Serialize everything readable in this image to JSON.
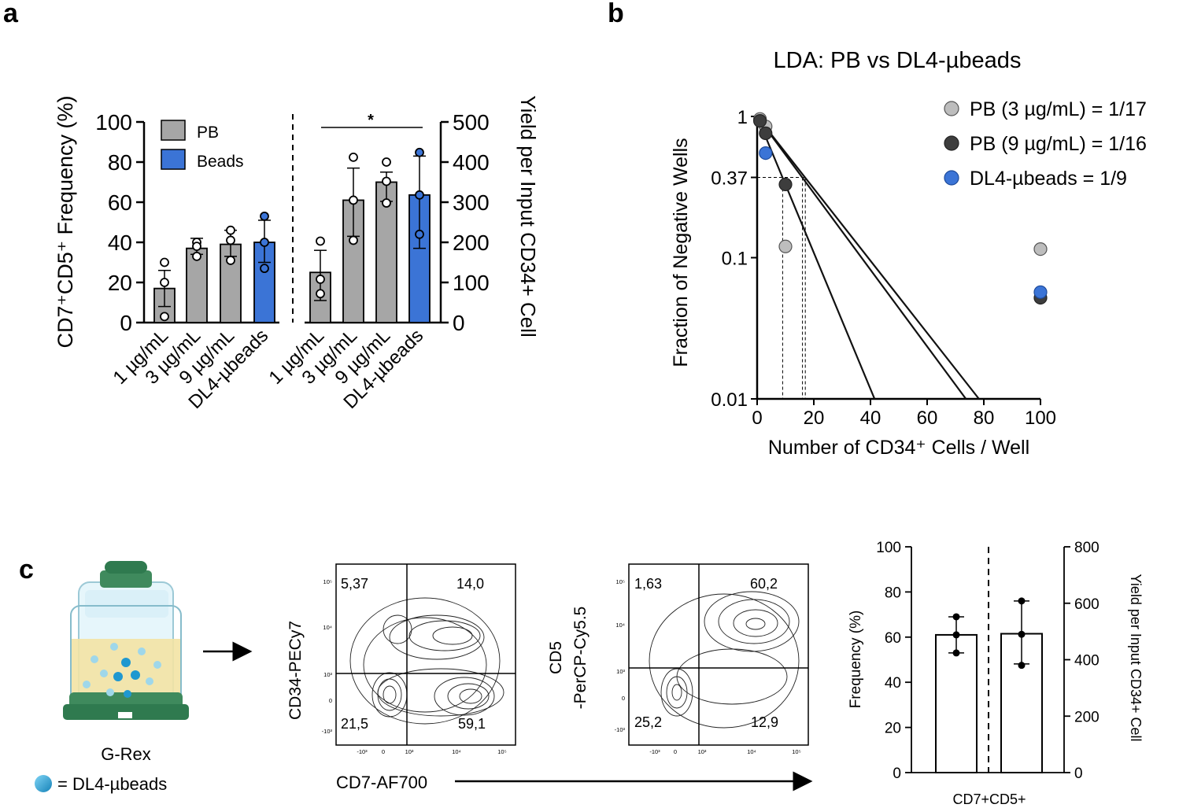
{
  "panels": {
    "a": {
      "label": "a",
      "legend": [
        {
          "name": "PB",
          "color": "#a6a6a6"
        },
        {
          "name": "Beads",
          "color": "#3b74d6"
        }
      ],
      "significance": "*"
    },
    "b": {
      "label": "b",
      "title": "LDA: PB vs DL4-µbeads",
      "legend": [
        {
          "name": "PB (3 µg/mL) = 1/17",
          "color": "#bdbdbd"
        },
        {
          "name": "PB (9 µg/mL) = 1/16",
          "color": "#3d3d3d"
        },
        {
          "name": "DL4-µbeads = 1/9",
          "color": "#3b74d6"
        }
      ],
      "ref_tick": "0.37"
    },
    "c": {
      "label": "c",
      "grex_label": "G-Rex",
      "bead_legend": "= DL4-µbeads",
      "flow1": {
        "ylabel": "CD34-PECy7",
        "q_ul": "5,37",
        "q_ur": "14,0",
        "q_ll": "21,5",
        "q_lr": "59,1"
      },
      "flow2": {
        "ylabel1": "CD5",
        "ylabel2": "-PerCP-Cy5.5",
        "q_ul": "1,63",
        "q_ur": "60,2",
        "q_ll": "25,2",
        "q_lr": "12,9"
      },
      "flow_xlabel": "CD7-AF700",
      "flow_ticks": {
        "t5": "10⁵",
        "t4": "10⁴",
        "t3": "10³",
        "t0": "0",
        "tm3": "-10³"
      }
    }
  },
  "chart_data": [
    {
      "type": "bar",
      "id": "a-left",
      "categories": [
        "1 µg/mL",
        "3 µg/mL",
        "9 µg/mL",
        "DL4-µbeads"
      ],
      "values": [
        17,
        37,
        39,
        40
      ],
      "errors": [
        [
          8,
          26
        ],
        [
          34,
          42
        ],
        [
          33,
          46
        ],
        [
          30,
          51
        ]
      ],
      "points": [
        [
          30,
          20,
          3
        ],
        [
          40,
          38,
          33
        ],
        [
          46,
          41,
          31
        ],
        [
          53,
          40,
          27
        ]
      ],
      "ylabel": "CD7⁺CD5⁺ Frequency (%)",
      "ylim": [
        0,
        100
      ],
      "yticks": [
        "0",
        "20",
        "40",
        "60",
        "80",
        "100"
      ]
    },
    {
      "type": "bar",
      "id": "a-right",
      "categories": [
        "1 µg/mL",
        "3 µg/mL",
        "9 µg/mL",
        "DL4-µbeads"
      ],
      "values": [
        125,
        305,
        350,
        318
      ],
      "errors": [
        [
          55,
          180
        ],
        [
          215,
          385
        ],
        [
          302,
          375
        ],
        [
          185,
          415
        ]
      ],
      "points": [
        [
          203,
          72,
          108
        ],
        [
          412,
          305,
          205
        ],
        [
          400,
          352,
          298
        ],
        [
          424,
          318,
          220
        ]
      ],
      "ylabel": "Yield per Input CD34+ Cell",
      "ylim": [
        0,
        500
      ],
      "yticks": [
        "0",
        "100",
        "200",
        "300",
        "400",
        "500"
      ]
    },
    {
      "type": "scatter",
      "id": "b-lda",
      "title": "LDA: PB vs DL4-µbeads",
      "xlabel": "Number of CD34⁺ Cells / Well",
      "ylabel": "Fraction of Negative Wells",
      "xlim": [
        0,
        100
      ],
      "ylim": [
        0.01,
        1
      ],
      "xticks": [
        "0",
        "20",
        "40",
        "60",
        "80",
        "100"
      ],
      "yticks": [
        "0.01",
        "0.1",
        "1"
      ],
      "series": [
        {
          "name": "PB (3 µg/mL) = 1/17",
          "x": [
            1,
            3,
            10,
            100
          ],
          "y": [
            0.96,
            0.85,
            0.12,
            0.115
          ],
          "frequency": 17
        },
        {
          "name": "PB (9 µg/mL) = 1/16",
          "x": [
            1,
            3,
            10,
            100
          ],
          "y": [
            0.93,
            0.76,
            0.33,
            0.052
          ],
          "frequency": 16
        },
        {
          "name": "DL4-µbeads = 1/9",
          "x": [
            3,
            100
          ],
          "y": [
            0.55,
            0.057
          ],
          "frequency": 9
        }
      ]
    },
    {
      "type": "bar",
      "id": "c-summary",
      "categories": [
        "CD7+CD5+"
      ],
      "xlabel": "CD7+CD5+",
      "left": {
        "value": 61,
        "error": [
          53,
          69
        ],
        "points": [
          69,
          61,
          53
        ],
        "ylabel": "Frequency (%)",
        "ylim": [
          0,
          100
        ],
        "yticks": [
          "0",
          "20",
          "40",
          "60",
          "80",
          "100"
        ]
      },
      "right": {
        "value": 492,
        "error": [
          385,
          608
        ],
        "points": [
          608,
          490,
          380
        ],
        "ylabel": "Yield per Input CD34+ Cell",
        "ylim": [
          0,
          800
        ],
        "yticks": [
          "0",
          "200",
          "400",
          "600",
          "800"
        ]
      }
    }
  ]
}
